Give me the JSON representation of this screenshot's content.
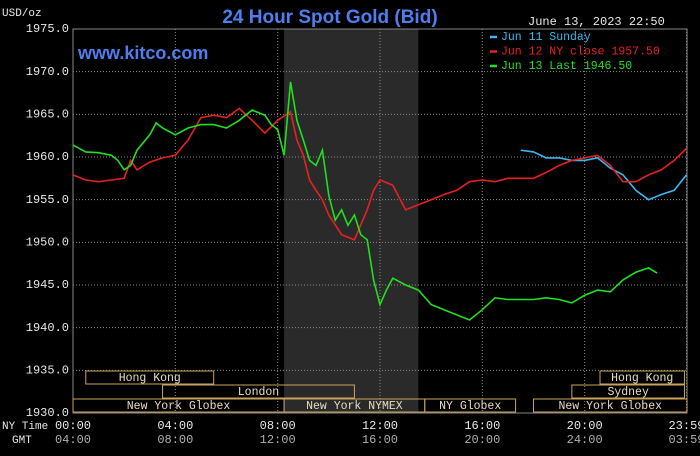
{
  "chart_data": {
    "type": "line",
    "title": "24 Hour Spot Gold (Bid)",
    "subtitle": "www.kitco.com",
    "timestamp": "June 13, 2023 22:50",
    "y_label": "USD/oz",
    "x_label": "NY Time",
    "x2_label": "GMT",
    "ylim": [
      1930,
      1975
    ],
    "yticks": [
      {
        "value": 1930,
        "label": "1930.0"
      },
      {
        "value": 1935,
        "label": "1935.0"
      },
      {
        "value": 1940,
        "label": "1940.0"
      },
      {
        "value": 1945,
        "label": "1945.0"
      },
      {
        "value": 1950,
        "label": "1950.0"
      },
      {
        "value": 1955,
        "label": "1955.0"
      },
      {
        "value": 1960,
        "label": "1960.0"
      },
      {
        "value": 1965,
        "label": "1965.0"
      },
      {
        "value": 1970,
        "label": "1970.0"
      },
      {
        "value": 1975,
        "label": "1975.0"
      }
    ],
    "xlim": [
      0,
      24
    ],
    "xticks": [
      {
        "value": 0,
        "label": "00:00"
      },
      {
        "value": 4,
        "label": "04:00"
      },
      {
        "value": 8,
        "label": "08:00"
      },
      {
        "value": 12,
        "label": "12:00"
      },
      {
        "value": 16,
        "label": "16:00"
      },
      {
        "value": 20,
        "label": "20:00"
      },
      {
        "value": 23.98,
        "label": "23:59"
      }
    ],
    "x2ticks": [
      {
        "value": 0,
        "label": "04:00"
      },
      {
        "value": 4,
        "label": "08:00"
      },
      {
        "value": 8,
        "label": "12:00"
      },
      {
        "value": 12,
        "label": "16:00"
      },
      {
        "value": 16,
        "label": "20:00"
      },
      {
        "value": 20,
        "label": "24:00"
      },
      {
        "value": 23.98,
        "label": "03:59"
      }
    ],
    "grid": true,
    "shaded_region": [
      8.25,
      13.5
    ],
    "sessions": [
      {
        "label": "Hong Kong",
        "start": 0.5,
        "end": 5.5,
        "row": 0
      },
      {
        "label": "Hong Kong",
        "start": 20.6,
        "end": 23.9,
        "row": 0
      },
      {
        "label": "London",
        "start": 3.5,
        "end": 11,
        "row": 1
      },
      {
        "label": "Sydney",
        "start": 19.5,
        "end": 23.9,
        "row": 1
      },
      {
        "label": "New York Globex",
        "start": 0,
        "end": 8.25,
        "row": 2
      },
      {
        "label": "New York NYMEX",
        "start": 8.25,
        "end": 13.75,
        "row": 2
      },
      {
        "label": "NY Globex",
        "start": 13.75,
        "end": 17.3,
        "row": 2
      },
      {
        "label": "New York Globex",
        "start": 18,
        "end": 24,
        "row": 2
      }
    ],
    "series": [
      {
        "name": "Jun 11 Sunday",
        "color": "#38b8f0",
        "x": [
          17.5,
          18,
          18.5,
          19,
          19.5,
          20,
          20.5,
          21,
          21.5,
          22,
          22.5,
          23,
          23.5,
          23.98
        ],
        "values": [
          1960.8,
          1960.6,
          1959.9,
          1959.9,
          1959.6,
          1959.6,
          1959.9,
          1958.7,
          1957.9,
          1956.1,
          1955,
          1955.6,
          1956.1,
          1957.9
        ]
      },
      {
        "name": "Jun 12 NY close 1957.50",
        "color": "#e82020",
        "x": [
          0,
          0.5,
          1,
          1.5,
          2,
          2.25,
          2.5,
          3,
          3.5,
          4,
          4.5,
          5,
          5.5,
          6,
          6.5,
          7,
          7.5,
          8,
          8.5,
          8.75,
          9,
          9.25,
          9.5,
          9.75,
          10,
          10.5,
          11,
          11.5,
          11.75,
          12,
          12.5,
          13,
          13.5,
          14,
          14.5,
          15,
          15.5,
          16,
          16.5,
          17,
          17.5,
          18,
          18.5,
          19,
          19.5,
          20,
          20.5,
          21,
          21.5,
          22,
          22.5,
          23,
          23.5,
          23.98
        ],
        "values": [
          1957.9,
          1957.3,
          1957.1,
          1957.3,
          1957.5,
          1959.6,
          1958.5,
          1959.4,
          1959.9,
          1960.2,
          1962,
          1964.6,
          1964.9,
          1964.6,
          1965.7,
          1964.3,
          1962.8,
          1964.3,
          1965.3,
          1962,
          1960.2,
          1957.3,
          1956.1,
          1955,
          1953.2,
          1950.9,
          1950.3,
          1953.8,
          1956.1,
          1957.3,
          1956.7,
          1953.8,
          1954.4,
          1955,
          1955.6,
          1956.1,
          1957.1,
          1957.3,
          1957.1,
          1957.5,
          1957.5,
          1957.5,
          1958.2,
          1959,
          1959.6,
          1959.9,
          1960.2,
          1959,
          1957.1,
          1957.1,
          1957.9,
          1958.5,
          1959.6,
          1961
        ]
      },
      {
        "name": "Jun 13 Last 1946.50",
        "color": "#20e020",
        "x": [
          0,
          0.5,
          1,
          1.5,
          1.75,
          2,
          2.25,
          2.5,
          3,
          3.25,
          3.5,
          4,
          4.5,
          5,
          5.5,
          6,
          6.5,
          7,
          7.5,
          7.75,
          8,
          8.25,
          8.5,
          8.75,
          9,
          9.25,
          9.5,
          9.75,
          10,
          10.25,
          10.5,
          10.75,
          11,
          11.25,
          11.5,
          11.75,
          12,
          12.25,
          12.5,
          13,
          13.5,
          14,
          14.5,
          15,
          15.5,
          16,
          16.5,
          17,
          17.5,
          18,
          18.5,
          19,
          19.5,
          20,
          20.5,
          21,
          21.5,
          22,
          22.5,
          22.83
        ],
        "values": [
          1961.4,
          1960.6,
          1960.5,
          1960.2,
          1959.6,
          1958.5,
          1959,
          1960.8,
          1962.6,
          1964,
          1963.4,
          1962.6,
          1963.4,
          1963.8,
          1963.8,
          1963.4,
          1964.3,
          1965.5,
          1964.9,
          1963.8,
          1963.2,
          1960.2,
          1968.8,
          1964.3,
          1962,
          1959.6,
          1959,
          1960.8,
          1955.5,
          1952.6,
          1953.8,
          1952,
          1953.2,
          1950.9,
          1950.3,
          1945.6,
          1942.7,
          1944.4,
          1945.8,
          1945,
          1944.4,
          1942.7,
          1942.1,
          1941.5,
          1940.9,
          1942.1,
          1943.5,
          1943.3,
          1943.3,
          1943.3,
          1943.5,
          1943.3,
          1942.9,
          1943.8,
          1944.4,
          1944.2,
          1945.6,
          1946.5,
          1947,
          1946.4
        ]
      }
    ]
  }
}
